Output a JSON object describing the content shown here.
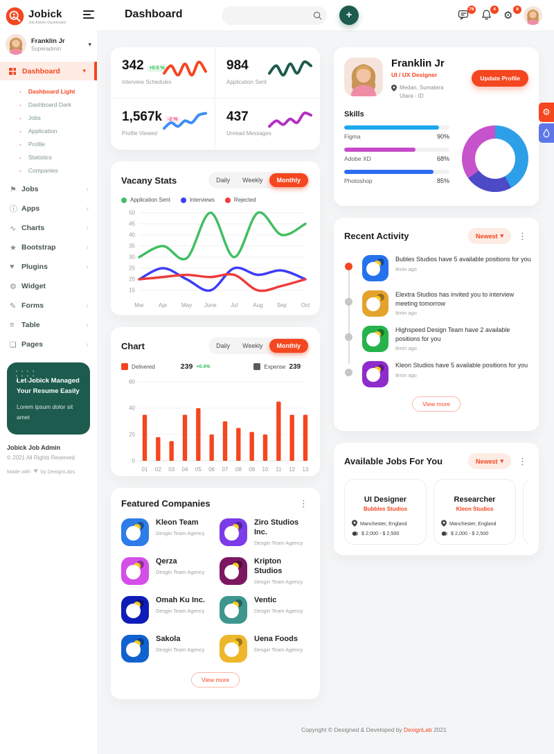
{
  "app": {
    "name": "Jobick",
    "tagline": "Job Admin Dashboard"
  },
  "colors": {
    "primary": "#F4461F",
    "primary_light": "#FDEBE4",
    "dark_green": "#1C5B4D",
    "up_green": "#2BC155",
    "down_pink": "#F0437C"
  },
  "header": {
    "title": "Dashboard",
    "search_placeholder": "",
    "add_label": "+",
    "messages_badge": "76",
    "alerts_badge": "4",
    "settings_badge": "8"
  },
  "sidebar": {
    "user": {
      "name": "Franklin Jr",
      "role": "Superadmin"
    },
    "active": {
      "label": "Dashboard"
    },
    "submenu": [
      {
        "label": "Dashboard Light",
        "active": true
      },
      {
        "label": "Dashboard Dark",
        "active": false
      },
      {
        "label": "Jobs",
        "active": false
      },
      {
        "label": "Application",
        "active": false
      },
      {
        "label": "Profile",
        "active": false
      },
      {
        "label": "Statistics",
        "active": false
      },
      {
        "label": "Companies",
        "active": false
      }
    ],
    "menu": [
      {
        "label": "Jobs",
        "icon": "flag-icon",
        "glyph": "⚑",
        "arrow": true
      },
      {
        "label": "Apps",
        "icon": "info-icon",
        "glyph": "ⓘ",
        "arrow": true
      },
      {
        "label": "Charts",
        "icon": "chart-icon",
        "glyph": "∿",
        "arrow": true
      },
      {
        "label": "Bootstrap",
        "icon": "star-icon",
        "glyph": "★",
        "arrow": true
      },
      {
        "label": "Plugins",
        "icon": "heart-icon",
        "glyph": "♥",
        "arrow": true
      },
      {
        "label": "Widget",
        "icon": "gear-icon",
        "glyph": "⚙",
        "arrow": false
      },
      {
        "label": "Forms",
        "icon": "form-icon",
        "glyph": "✎",
        "arrow": true
      },
      {
        "label": "Table",
        "icon": "table-icon",
        "glyph": "≡",
        "arrow": true
      },
      {
        "label": "Pages",
        "icon": "pages-icon",
        "glyph": "❏",
        "arrow": true
      }
    ],
    "promo": {
      "title": "Let Jobick Managed Your Resume Easily",
      "body": "Lorem ipsum dolor sit amet"
    },
    "footer": {
      "brand": "Jobick Job Admin",
      "copyright": "© 2021 All Rights Reserved",
      "made_with": "Made with",
      "by": "by DexignLabs",
      "heart": "♥"
    }
  },
  "stats": [
    {
      "value": "342",
      "delta": "+0.5 %",
      "delta_type": "up",
      "label": "Interview Schedules",
      "color": "#F4461F",
      "spark": [
        4,
        8,
        3,
        9,
        3,
        10,
        5
      ]
    },
    {
      "value": "984",
      "delta": "",
      "delta_type": "",
      "label": "Application Sent",
      "color": "#1C5B4D",
      "spark": [
        4,
        8,
        3,
        9,
        4,
        10,
        8
      ]
    },
    {
      "value": "1,567k",
      "delta": "-2 %",
      "delta_type": "down",
      "label": "Profile Viewed",
      "color": "#3E8EF7",
      "spark": [
        2,
        5,
        3,
        6,
        5,
        9,
        10
      ]
    },
    {
      "value": "437",
      "delta": "",
      "delta_type": "",
      "label": "Unread Messages",
      "color": "#B52FC4",
      "spark": [
        3,
        6,
        4,
        7,
        5,
        10,
        9
      ]
    }
  ],
  "vacancy": {
    "title": "Vacany Stats",
    "tabs": [
      "Daily",
      "Weekly",
      "Monthly"
    ],
    "active_tab": "Monthly"
  },
  "chart_card": {
    "title": "Chart",
    "tabs": [
      "Daily",
      "Weekly",
      "Monthly"
    ],
    "active_tab": "Monthly",
    "legend": {
      "delivered_label": "Delivered",
      "delivered_value": "239",
      "delivered_delta": "+0.4%",
      "delivered_color": "#F4461F",
      "expense_label": "Expense",
      "expense_value": "239",
      "expense_color": "#5B5B5B"
    }
  },
  "chart_data": [
    {
      "id": "vacancy-line",
      "type": "line",
      "title": "Vacany Stats",
      "x": [
        "Mar",
        "Apr",
        "May",
        "June",
        "Jul",
        "Aug",
        "Sep",
        "Oct"
      ],
      "ylim": [
        15,
        50
      ],
      "yticks": [
        50,
        45,
        40,
        35,
        30,
        25,
        20,
        15
      ],
      "grid": true,
      "legend_position": "top",
      "series": [
        {
          "name": "Application Sent",
          "color": "#41BE64",
          "values": [
            30,
            35,
            29.5,
            50,
            30,
            50,
            40,
            45
          ]
        },
        {
          "name": "Interviews",
          "color": "#3D3DF5",
          "values": [
            20,
            25,
            20,
            15,
            25,
            22,
            24,
            20
          ]
        },
        {
          "name": "Rejected",
          "color": "#EE3C3C",
          "values": [
            20,
            21,
            22,
            21,
            22,
            15,
            17,
            20
          ]
        }
      ]
    },
    {
      "id": "delivered-bar",
      "type": "bar",
      "title": "Chart",
      "categories": [
        "01",
        "02",
        "03",
        "04",
        "05",
        "06",
        "07",
        "08",
        "09",
        "10",
        "11",
        "12",
        "13"
      ],
      "values": [
        35,
        18,
        15,
        35,
        40,
        20,
        30,
        25,
        22,
        20,
        45,
        35,
        35
      ],
      "color": "#F4461F",
      "ylim": [
        0,
        60
      ],
      "yticks": [
        60,
        40,
        20,
        0
      ],
      "grid": true
    },
    {
      "id": "skills-donut",
      "type": "pie",
      "slices": [
        {
          "value": 42,
          "color": "#2D9FE8"
        },
        {
          "value": 23,
          "color": "#4D4AC8"
        },
        {
          "value": 35,
          "color": "#C653CB"
        }
      ]
    }
  ],
  "profile": {
    "name": "Franklin Jr",
    "role": "UI / UX Designer",
    "location": "Medan, Sumatera Utara - ID",
    "button": "Update Profile",
    "skills_title": "Skills",
    "skills": [
      {
        "name": "Figma",
        "pct": 90,
        "pct_label": "90%",
        "color": "#1DA7EE"
      },
      {
        "name": "Adobe XD",
        "pct": 68,
        "pct_label": "68%",
        "color": "#C74AC7"
      },
      {
        "name": "Photoshop",
        "pct": 85,
        "pct_label": "85%",
        "color": "#2B6CF0"
      }
    ]
  },
  "activity": {
    "title": "Recent Activity",
    "filter": "Newest",
    "view_more": "View more",
    "items": [
      {
        "text": "Bubles Studios have 5 available positions for you",
        "time": "8min ago",
        "color": "#2672EC",
        "dot_active": true
      },
      {
        "text": "Elextra Studios has invited you to interview meeting tomorrow",
        "time": "8min ago",
        "color": "#E4A32C",
        "dot_active": false
      },
      {
        "text": "Highspeed Design Team have 2 available positions for you",
        "time": "8min ago",
        "color": "#26B34B",
        "dot_active": false
      },
      {
        "text": "Kleon Studios have 5 available positions for you",
        "time": "8min ago",
        "color": "#8E2CCC",
        "dot_active": false
      }
    ]
  },
  "jobs": {
    "title": "Available Jobs For You",
    "filter": "Newest",
    "items": [
      {
        "title": "UI Designer",
        "company": "Bubbles Studios",
        "location": "Manchester, England",
        "salary": "$ 2,000 - $ 2,500",
        "color": "#2E7CE8",
        "partial": false
      },
      {
        "title": "Researcher",
        "company": "Kleon Studios",
        "location": "Manchester, England",
        "salary": "$ 2,000 - $ 2,500",
        "color": "#EE30B4",
        "partial": false
      },
      {
        "title": "",
        "company": "",
        "location": "",
        "salary": "",
        "color": "#EEB62A",
        "partial": true
      }
    ]
  },
  "companies": {
    "title": "Featured Companies",
    "tag": "Desgin Team Agency",
    "view_more": "View more",
    "items": [
      {
        "name": "Kleon Team",
        "color": "#2E7CE8"
      },
      {
        "name": "Ziro Studios Inc.",
        "color": "#7B3CE8"
      },
      {
        "name": "Qerza",
        "color": "#D44EE8"
      },
      {
        "name": "Kripton Studios",
        "color": "#7C1862"
      },
      {
        "name": "Omah Ku Inc.",
        "color": "#0F1DB8"
      },
      {
        "name": "Ventic",
        "color": "#3E968E"
      },
      {
        "name": "Sakola",
        "color": "#1161CF"
      },
      {
        "name": "Uena Foods",
        "color": "#EEB62A"
      }
    ]
  },
  "page_footer": {
    "prefix": "Copyright © Designed & Developed by",
    "brand": "DexignLab",
    "suffix": "2021"
  }
}
